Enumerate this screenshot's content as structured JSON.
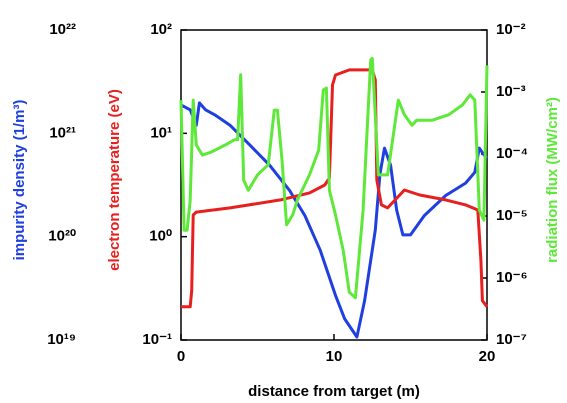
{
  "chart_data": {
    "type": "line",
    "x_label": "distance from target (m)",
    "xlim": [
      0,
      20
    ],
    "xticks": [
      0,
      10,
      20
    ],
    "series": [
      {
        "label": "impurity density (1/m³)",
        "color": "#1f3fe0",
        "yscale": "log",
        "ylim": [
          1e+19,
          1e+22
        ],
        "yticks": [
          {
            "value": 1e+19,
            "label": "10¹⁹"
          },
          {
            "value": 1e+20,
            "label": "10²⁰"
          },
          {
            "value": 1e+21,
            "label": "10²¹"
          },
          {
            "value": 1e+22,
            "label": "10²²"
          }
        ],
        "x": [
          0,
          0.6,
          1.0,
          1.2,
          1.6,
          2.2,
          3.2,
          4.5,
          5.8,
          7.1,
          8.1,
          9.1,
          10.1,
          10.7,
          11.5,
          12.0,
          12.7,
          13.0,
          13.3,
          13.7,
          14.1,
          14.5,
          15.0,
          15.9,
          17.3,
          18.6,
          19.2,
          19.5,
          19.8,
          20
        ],
        "values": [
          1.88e+21,
          1.69e+21,
          1.2e+21,
          1.97e+21,
          1.69e+21,
          1.51e+21,
          1.2e+21,
          7.7e+20,
          4.9e+20,
          2.8e+20,
          1.6e+20,
          7.4e+19,
          2.7e+19,
          1.6e+19,
          1.07e+19,
          2.4e+19,
          1.16e+20,
          4e+20,
          7.2e+20,
          4.9e+20,
          1.8e+20,
          1.04e+20,
          1.04e+20,
          1.6e+20,
          2.5e+20,
          3.3e+20,
          4.2e+20,
          7.2e+20,
          6.2e+20,
          5.8e+20
        ]
      },
      {
        "label": "electron temperature (eV)",
        "color": "#e81f1f",
        "yscale": "log",
        "ylim": [
          0.1,
          100
        ],
        "yticks": [
          {
            "value": 0.1,
            "label": "10⁻¹"
          },
          {
            "value": 1,
            "label": "10⁰"
          },
          {
            "value": 10,
            "label": "10¹"
          },
          {
            "value": 100,
            "label": "10²"
          }
        ],
        "x": [
          0,
          0.6,
          0.7,
          0.8,
          1.0,
          3.2,
          6.5,
          8.4,
          9.4,
          9.7,
          9.9,
          10.1,
          11.0,
          12.5,
          12.7,
          12.8,
          13.1,
          13.5,
          14.0,
          14.6,
          15.6,
          17.3,
          18.6,
          19.4,
          19.6,
          19.7,
          20
        ],
        "values": [
          0.21,
          0.21,
          0.3,
          1.62,
          1.73,
          1.9,
          2.27,
          2.65,
          3.16,
          3.7,
          29.4,
          36.7,
          41.1,
          41.1,
          32.9,
          3.54,
          2.03,
          1.9,
          2.27,
          2.83,
          2.53,
          2.27,
          2.03,
          1.81,
          0.59,
          0.24,
          0.21
        ]
      },
      {
        "label": "radiation flux (MW/cm²)",
        "color": "#5ee83a",
        "yscale": "log",
        "ylim": [
          1e-07,
          0.01
        ],
        "yticks": [
          {
            "value": 1e-07,
            "label": "10⁻⁷"
          },
          {
            "value": 1e-06,
            "label": "10⁻⁶"
          },
          {
            "value": 1e-05,
            "label": "10⁻⁵"
          },
          {
            "value": 0.0001,
            "label": "10⁻⁴"
          },
          {
            "value": 0.001,
            "label": "10⁻³"
          },
          {
            "value": 0.01,
            "label": "10⁻²"
          }
        ],
        "x": [
          0,
          0.2,
          0.4,
          0.6,
          0.8,
          1.0,
          1.4,
          2.0,
          2.9,
          3.5,
          3.7,
          3.9,
          4.1,
          4.4,
          5.0,
          5.7,
          6.1,
          6.3,
          6.6,
          6.9,
          7.3,
          7.6,
          8.4,
          9.0,
          9.3,
          9.5,
          9.7,
          10.1,
          10.6,
          11.0,
          11.4,
          11.9,
          12.4,
          12.5,
          12.9,
          13.5,
          14.2,
          14.6,
          15.1,
          15.4,
          16.4,
          17.5,
          18.4,
          18.9,
          19.2,
          19.5,
          19.8,
          20
        ],
        "values": [
          0.00074,
          5.9e-06,
          5.9e-06,
          1.8e-05,
          0.00074,
          0.00014,
          9.6e-05,
          0.000108,
          0.00014,
          0.00017,
          0.00017,
          0.0019,
          3.8e-05,
          2.6e-05,
          4.6e-05,
          6.7e-05,
          0.00051,
          0.00051,
          8e-05,
          7.2e-06,
          1.04e-05,
          1.8e-05,
          4.6e-05,
          0.000116,
          0.00108,
          0.00116,
          2.6e-05,
          1.04e-05,
          2.8e-06,
          5.9e-07,
          4.8e-07,
          1.25e-05,
          0.0033,
          0.0035,
          4.6e-05,
          4.6e-05,
          0.00074,
          0.00043,
          0.00029,
          0.00035,
          0.00035,
          0.00043,
          0.00062,
          0.0009,
          0.00074,
          1.25e-05,
          8.6e-06,
          0.0027
        ]
      }
    ]
  }
}
